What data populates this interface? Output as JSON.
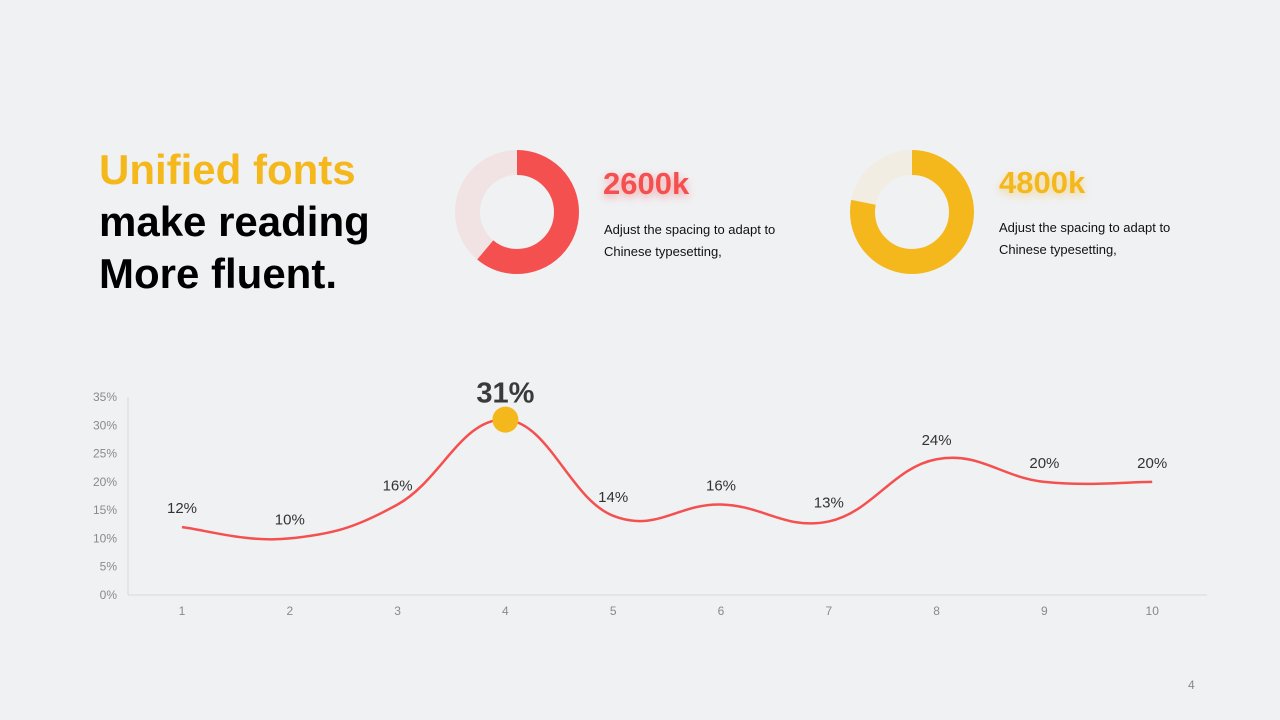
{
  "headline": {
    "line1": "Unified fonts",
    "line2": "make reading",
    "line3": "More fluent."
  },
  "stats": [
    {
      "value": "2600k",
      "description": "Adjust the spacing to adapt to Chinese typesetting,",
      "fraction": 0.61,
      "color": "#f55050",
      "track_color": "#f1e3e4"
    },
    {
      "value": "4800k",
      "description": "Adjust the spacing to adapt to Chinese typesetting,",
      "fraction": 0.78,
      "color": "#f5b81c",
      "track_color": "#f2ede2"
    }
  ],
  "chart_data": {
    "type": "line",
    "x": [
      1,
      2,
      3,
      4,
      5,
      6,
      7,
      8,
      9,
      10
    ],
    "categories": [
      "1",
      "2",
      "3",
      "4",
      "5",
      "6",
      "7",
      "8",
      "9",
      "10"
    ],
    "series": [
      {
        "values": [
          12,
          10,
          16,
          31,
          14,
          16,
          13,
          24,
          20,
          20
        ],
        "labels": [
          "12%",
          "10%",
          "16%",
          "31%",
          "14%",
          "16%",
          "13%",
          "24%",
          "20%",
          "20%"
        ]
      }
    ],
    "y_ticks": [
      "0%",
      "5%",
      "10%",
      "15%",
      "20%",
      "25%",
      "30%",
      "35%"
    ],
    "ylim": [
      0,
      35
    ],
    "highlight_index": 3,
    "line_color": "#f55050",
    "highlight_color": "#f5b81c",
    "grid": false
  },
  "page_number": "4"
}
